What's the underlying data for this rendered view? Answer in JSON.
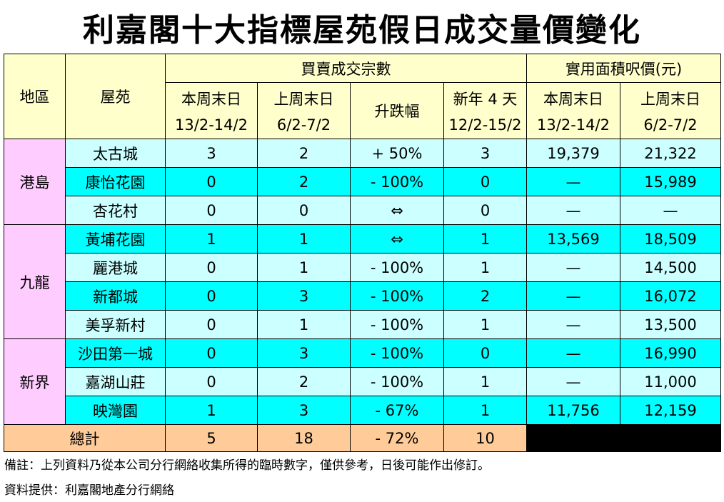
{
  "title": "利嘉閣十大指標屋苑假日成交量價變化",
  "headers": {
    "district": "地區",
    "estate": "屋苑",
    "volume_group": "買賣成交宗數",
    "price_group": "實用面積呎價(元)",
    "this_weekend": "本周末日",
    "this_weekend_dates": "13/2-14/2",
    "last_weekend": "上周末日",
    "last_weekend_dates": "6/2-7/2",
    "change": "升跌幅",
    "new_year": "新年 4 天",
    "new_year_dates": "12/2-15/2",
    "price_this_weekend": "本周末日",
    "price_this_weekend_dates": "13/2-14/2",
    "price_last_weekend": "上周末日",
    "price_last_weekend_dates": "6/2-7/2"
  },
  "districts": [
    "港島",
    "九龍",
    "新界"
  ],
  "rows": [
    {
      "estate": "太古城",
      "this": "3",
      "last": "2",
      "change": "+ 50%",
      "newyear": "3",
      "price_this": "19,379",
      "price_last": "21,322"
    },
    {
      "estate": "康怡花園",
      "this": "0",
      "last": "2",
      "change": "- 100%",
      "newyear": "0",
      "price_this": "—",
      "price_last": "15,989"
    },
    {
      "estate": "杏花村",
      "this": "0",
      "last": "0",
      "change": "⇔",
      "newyear": "0",
      "price_this": "—",
      "price_last": "—"
    },
    {
      "estate": "黃埔花園",
      "this": "1",
      "last": "1",
      "change": "⇔",
      "newyear": "1",
      "price_this": "13,569",
      "price_last": "18,509"
    },
    {
      "estate": "麗港城",
      "this": "0",
      "last": "1",
      "change": "- 100%",
      "newyear": "1",
      "price_this": "—",
      "price_last": "14,500"
    },
    {
      "estate": "新都城",
      "this": "0",
      "last": "3",
      "change": "- 100%",
      "newyear": "2",
      "price_this": "—",
      "price_last": "16,072"
    },
    {
      "estate": "美孚新村",
      "this": "0",
      "last": "1",
      "change": "- 100%",
      "newyear": "1",
      "price_this": "—",
      "price_last": "13,500"
    },
    {
      "estate": "沙田第一城",
      "this": "0",
      "last": "3",
      "change": "- 100%",
      "newyear": "0",
      "price_this": "—",
      "price_last": "16,990"
    },
    {
      "estate": "嘉湖山莊",
      "this": "0",
      "last": "2",
      "change": "- 100%",
      "newyear": "1",
      "price_this": "—",
      "price_last": "11,000"
    },
    {
      "estate": "映灣園",
      "this": "1",
      "last": "3",
      "change": "- 67%",
      "newyear": "1",
      "price_this": "11,756",
      "price_last": "12,159"
    }
  ],
  "total": {
    "label": "總計",
    "this": "5",
    "last": "18",
    "change": "- 72%",
    "newyear": "10"
  },
  "notes": {
    "remark": "備註：上列資料乃從本公司分行網絡收集所得的臨時數字，僅供參考，日後可能作出修訂。",
    "source": "資料提供：利嘉閣地產分行網絡"
  }
}
